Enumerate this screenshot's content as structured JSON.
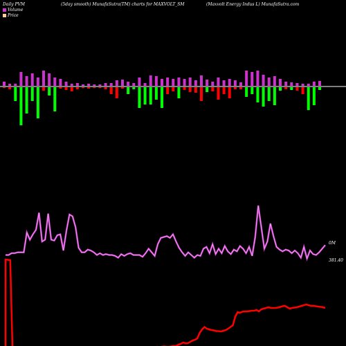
{
  "header": {
    "left": "Daily PVM",
    "center": "(5day smooth) MunafaSutra(TM) charts for MAXVOLT_SM",
    "right": "(Maxvolt Energy Indus L) MunafaSutra.com"
  },
  "legend": [
    {
      "label": "Volume",
      "color": "#cc33cc"
    },
    {
      "label": "Price",
      "color": "#ffcc99"
    }
  ],
  "colors": {
    "background": "#000000",
    "axis_line": "#ffffff",
    "volume_line": "#cc33cc",
    "price_line": "#ff0000",
    "bar_up": "#cc33cc",
    "bar_pos_green": "#00ff00",
    "bar_neg_red": "#ff0000"
  },
  "chart_data": {
    "type": "bar+line",
    "volume_label": "0M",
    "price_label": "381.40",
    "pvm_bars": {
      "up": [
        6,
        3,
        3,
        20,
        14,
        18,
        12,
        22,
        18,
        12,
        10,
        6,
        3,
        4,
        2,
        3,
        2,
        2,
        4,
        4,
        8,
        9,
        6,
        4,
        12,
        4,
        15,
        14,
        10,
        12,
        10,
        12,
        10,
        12,
        8,
        15,
        9,
        6,
        12,
        8,
        10,
        8,
        5,
        22,
        20,
        22,
        16,
        12,
        14,
        10,
        6,
        5,
        4,
        3,
        3,
        6,
        7
      ],
      "down": [
        -1,
        -3,
        -20,
        -55,
        -38,
        -20,
        -45,
        -5,
        -12,
        -35,
        -2,
        -4,
        -6,
        -3,
        -1,
        -2,
        -1,
        -1,
        -3,
        -10,
        -16,
        -2,
        -10,
        -3,
        -30,
        -25,
        -25,
        -18,
        -30,
        -10,
        -6,
        -16,
        -4,
        -7,
        -8,
        -20,
        -7,
        -6,
        -18,
        -10,
        -16,
        -3,
        -3,
        -14,
        -10,
        -22,
        -28,
        -20,
        -26,
        -5,
        -3,
        -4,
        -5,
        -10,
        -33,
        -26,
        -4
      ],
      "down_colors": [
        "red",
        "red",
        "green",
        "green",
        "green",
        "green",
        "green",
        "red",
        "green",
        "green",
        "red",
        "red",
        "red",
        "red",
        "red",
        "red",
        "red",
        "red",
        "red",
        "red",
        "red",
        "red",
        "green",
        "green",
        "green",
        "green",
        "green",
        "green",
        "green",
        "red",
        "red",
        "green",
        "red",
        "red",
        "red",
        "red",
        "green",
        "red",
        "red",
        "red",
        "red",
        "red",
        "red",
        "green",
        "green",
        "green",
        "green",
        "green",
        "green",
        "green",
        "red",
        "green",
        "red",
        "red",
        "green",
        "green",
        "green"
      ]
    },
    "volume_series": [
      5,
      5,
      7,
      7,
      8,
      8,
      8,
      30,
      22,
      28,
      33,
      52,
      20,
      22,
      51,
      22,
      21,
      27,
      28,
      10,
      32,
      50,
      48,
      36,
      13,
      8,
      8,
      11,
      10,
      8,
      5,
      7,
      5,
      6,
      5,
      5,
      4,
      2,
      6,
      4,
      6,
      7,
      5,
      5,
      5,
      3,
      7,
      12,
      8,
      4,
      17,
      24,
      25,
      26,
      24,
      28,
      20,
      13,
      8,
      4,
      8,
      5,
      2,
      5,
      4,
      12,
      14,
      7,
      17,
      6,
      12,
      7,
      15,
      9,
      6,
      11,
      9,
      15,
      12,
      7,
      14,
      4,
      25,
      60,
      36,
      12,
      20,
      40,
      26,
      14,
      11,
      9,
      11,
      10,
      7,
      10,
      7,
      2,
      14,
      1,
      10,
      6,
      5,
      8,
      12,
      16
    ],
    "price_series": [
      95,
      92,
      93,
      94,
      95,
      96,
      96,
      97,
      96,
      97,
      96,
      96,
      96,
      96,
      96,
      97,
      96,
      96,
      96,
      96,
      94,
      95,
      94,
      95,
      96,
      97,
      95,
      94,
      96,
      95,
      95,
      96,
      96,
      97,
      95,
      96,
      96,
      96,
      97,
      97,
      98,
      97,
      98,
      98,
      99,
      98,
      100,
      99,
      101,
      99,
      100,
      100,
      99,
      97,
      96,
      98,
      100,
      100,
      100,
      104,
      104,
      112,
      114,
      116,
      118,
      117,
      118,
      119,
      118,
      118,
      119,
      120,
      120,
      124,
      126,
      130,
      128,
      128,
      132,
      136,
      138,
      142,
      158,
      168,
      175,
      170,
      168,
      166,
      165,
      163,
      163,
      162,
      164,
      166,
      170,
      175,
      180,
      205,
      218,
      216,
      219,
      220,
      220,
      221,
      222,
      222,
      224,
      220,
      226,
      228,
      230,
      232,
      230,
      230,
      230,
      231,
      233,
      235,
      236,
      232,
      228,
      230,
      231,
      232,
      234,
      236,
      238,
      240,
      238,
      236,
      236,
      235,
      234,
      233,
      232,
      230
    ]
  }
}
